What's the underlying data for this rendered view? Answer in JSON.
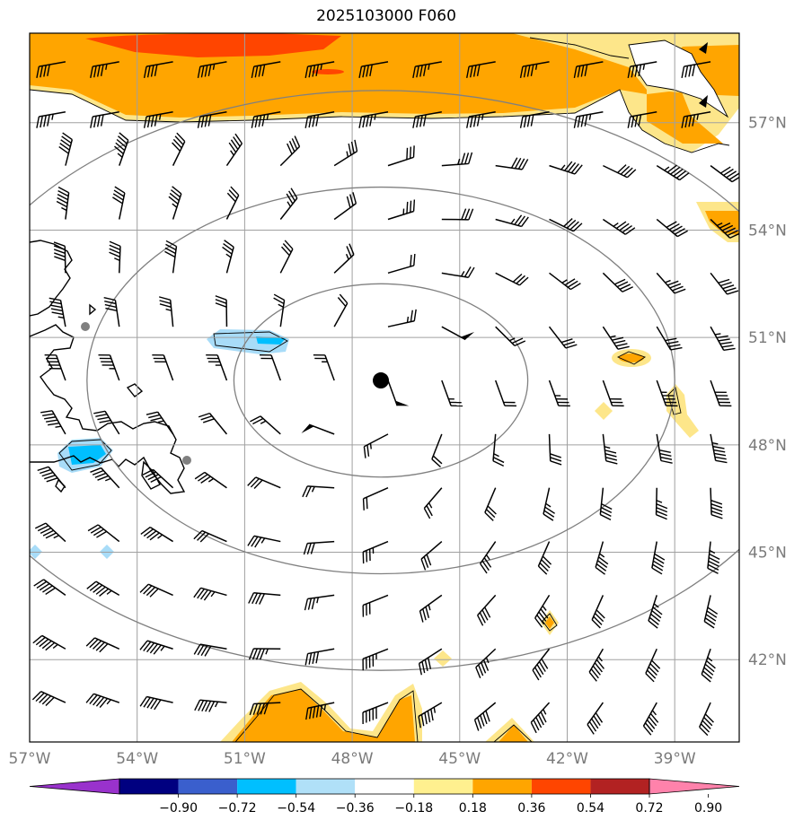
{
  "title": "2025103000 F060",
  "map": {
    "lon_range": [
      -57,
      -37.2
    ],
    "lat_range": [
      39.7,
      59.5
    ],
    "lon_ticks": [
      {
        "value": -57,
        "label": "57°W"
      },
      {
        "value": -54,
        "label": "54°W"
      },
      {
        "value": -51,
        "label": "51°W"
      },
      {
        "value": -48,
        "label": "48°W"
      },
      {
        "value": -45,
        "label": "45°W"
      },
      {
        "value": -42,
        "label": "42°W"
      },
      {
        "value": -39,
        "label": "39°W"
      }
    ],
    "lat_ticks": [
      {
        "value": 57,
        "label": "57°N"
      },
      {
        "value": 54,
        "label": "54°N"
      },
      {
        "value": 51,
        "label": "51°N"
      },
      {
        "value": 48,
        "label": "48°N"
      },
      {
        "value": 45,
        "label": "45°N"
      },
      {
        "value": 42,
        "label": "42°N"
      }
    ],
    "storm_center": {
      "lon": -47.2,
      "lat": 49.8
    },
    "range_rings": [
      {
        "name": "ring-inner",
        "radius_deg_lon": 4.1,
        "radius_deg_lat": 2.7
      },
      {
        "name": "ring-middle",
        "radius_deg_lon": 8.2,
        "radius_deg_lat": 5.4
      },
      {
        "name": "ring-outer",
        "radius_deg_lon": 12.3,
        "radius_deg_lat": 8.1
      }
    ],
    "barb_lons": [
      -56,
      -54.5,
      -53,
      -51.5,
      -50,
      -48.5,
      -47,
      -45.5,
      -44,
      -42.5,
      -41,
      -39.5,
      -38
    ],
    "barb_lats": [
      58.7,
      57.3,
      55.8,
      54.3,
      52.8,
      51.3,
      49.8,
      48.3,
      46.8,
      45.3,
      43.8,
      42.3,
      40.8
    ],
    "shading_colors": {
      "yellow": "#fde68a",
      "orange": "#ffa500",
      "red_orange": "#ff4500",
      "light_blue": "#a8dcf8",
      "blue": "#00bfff"
    }
  },
  "colorbar": {
    "colors": [
      "#9932cc",
      "#000080",
      "#3a5fcd",
      "#00bfff",
      "#b0e0f8",
      "#ffffff",
      "#fff08f",
      "#ffa500",
      "#ff4500",
      "#b22222",
      "#ff82ab"
    ],
    "labels": [
      "−0.90",
      "−0.72",
      "−0.54",
      "−0.36",
      "−0.18",
      "0.18",
      "0.36",
      "0.54",
      "0.72",
      "0.90"
    ]
  }
}
